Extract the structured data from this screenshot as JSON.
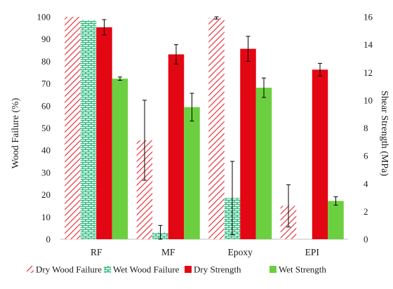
{
  "chart_data": {
    "type": "bar",
    "categories": [
      "RF",
      "MF",
      "Epoxy",
      "EPI"
    ],
    "ylabel_left": "Wood Failure (%)",
    "ylabel_right": "Shear Strength (MPa)",
    "ylim_left": [
      0,
      100
    ],
    "ylim_right": [
      0,
      16
    ],
    "yticks_left": [
      0,
      10,
      20,
      30,
      40,
      50,
      60,
      70,
      80,
      90,
      100
    ],
    "yticks_right": [
      0,
      2,
      4,
      6,
      8,
      10,
      12,
      14,
      16
    ],
    "grid": false,
    "legend_position": "bottom",
    "series": [
      {
        "name": "Dry Wood Failure",
        "axis": "left",
        "pattern": "diagonal-hatch",
        "color": "#e8232a",
        "values": [
          100,
          44.5,
          99.5,
          15
        ],
        "errors": [
          0,
          18,
          0.5,
          9.5
        ]
      },
      {
        "name": "Wet Wood Failure",
        "axis": "left",
        "pattern": "brick",
        "color": "#2bb97c",
        "values": [
          98.5,
          3,
          18.5,
          0
        ],
        "errors": [
          0,
          3.2,
          16.5,
          0
        ]
      },
      {
        "name": "Dry Strength",
        "axis": "right",
        "pattern": "solid",
        "color": "#e30613",
        "values": [
          15.25,
          13.3,
          13.7,
          12.2
        ],
        "errors": [
          0.55,
          0.7,
          0.9,
          0.45
        ]
      },
      {
        "name": "Wet Strength",
        "axis": "right",
        "pattern": "solid",
        "color": "#6ccf3f",
        "values": [
          11.55,
          9.5,
          10.9,
          2.75
        ],
        "errors": [
          0.12,
          1.0,
          0.7,
          0.3
        ]
      }
    ]
  }
}
